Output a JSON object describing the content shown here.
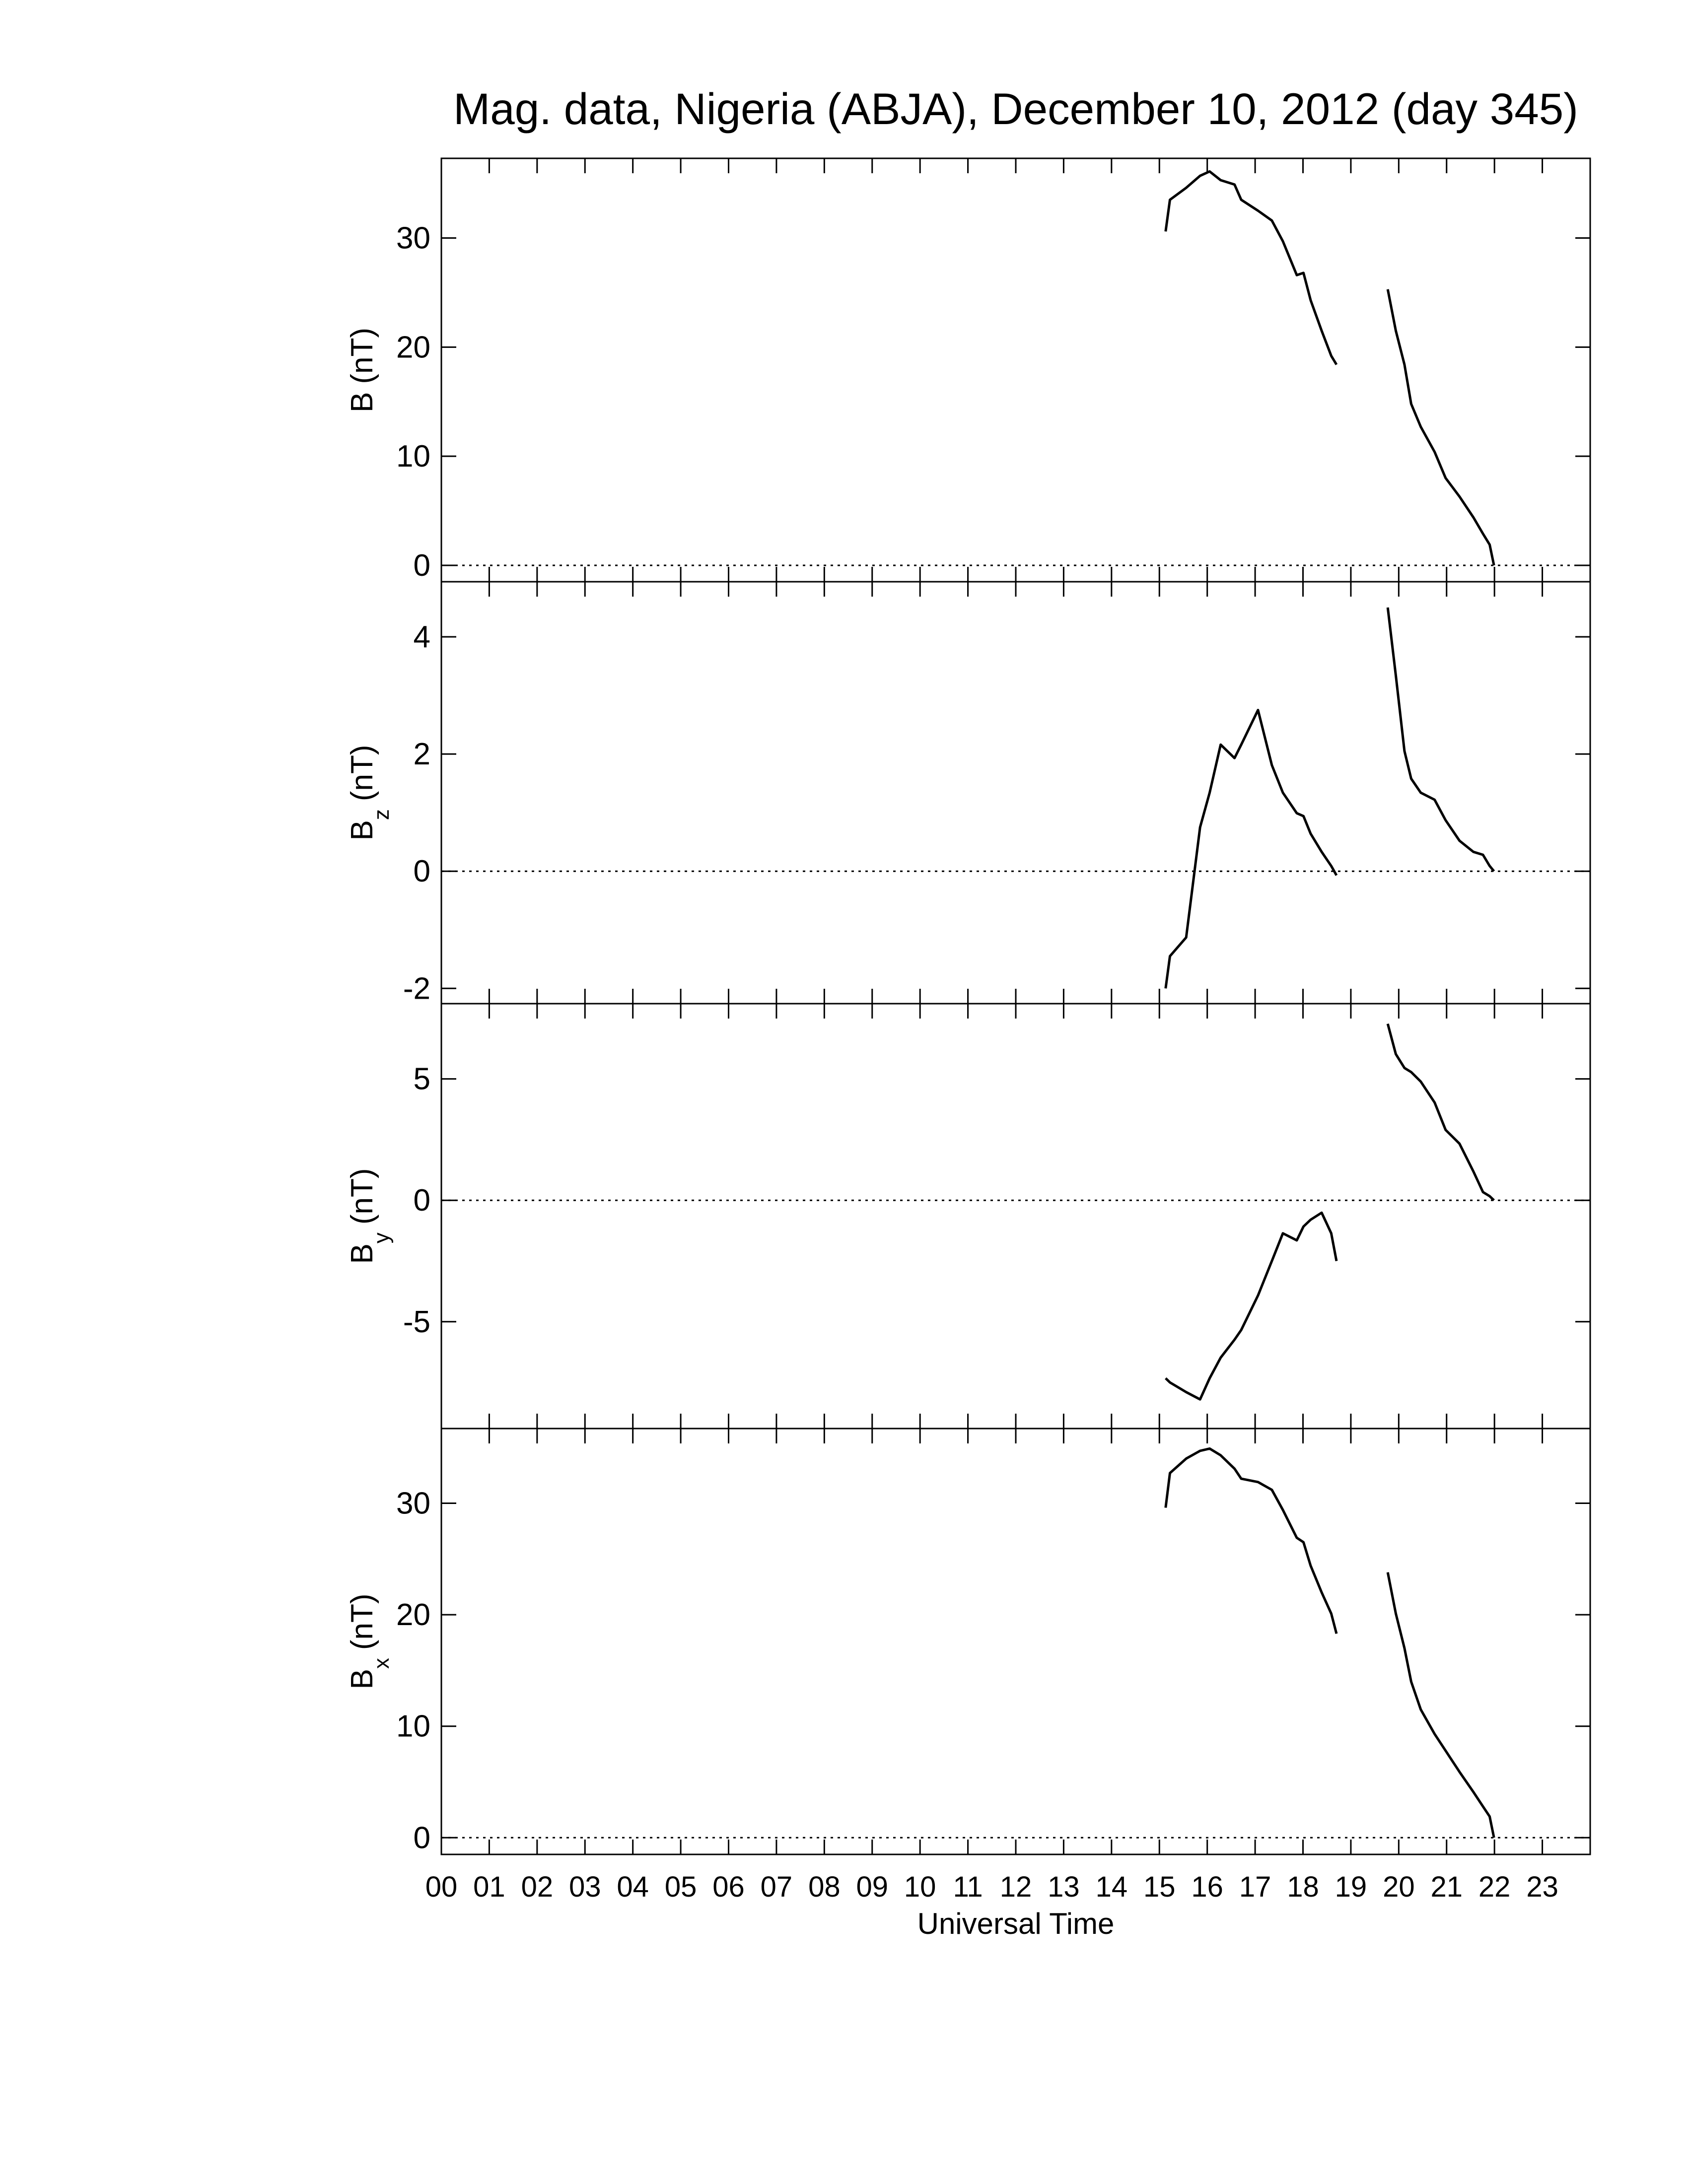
{
  "chart_data": [
    {
      "type": "line",
      "title": "Mag. data, Nigeria (ABJA), December 10, 2012 (day 345)",
      "ylabel": "B",
      "ylabel_unit": "(nT)",
      "color": "#000000",
      "zero_line": true,
      "xlim": [
        0,
        24
      ],
      "ylim": [
        -1.5,
        37.3
      ],
      "yticks": [
        0,
        10,
        20,
        30
      ],
      "x": [
        15.13,
        15.22,
        15.56,
        15.85,
        16.05,
        16.28,
        16.57,
        16.71,
        17.06,
        17.35,
        17.58,
        17.87,
        18.01,
        18.16,
        18.39,
        18.59,
        18.7,
        19.2,
        19.77,
        19.94,
        20.12,
        20.26,
        20.46,
        20.75,
        20.98,
        21.27,
        21.56,
        21.76,
        21.9,
        21.99
      ],
      "values": [
        30.6,
        33.5,
        34.6,
        35.7,
        36.1,
        35.3,
        34.9,
        33.5,
        32.5,
        31.6,
        29.7,
        26.6,
        26.8,
        24.3,
        21.5,
        19.2,
        18.4,
        null,
        25.3,
        21.5,
        18.4,
        14.8,
        12.7,
        10.4,
        8.0,
        6.3,
        4.4,
        2.9,
        1.9,
        0
      ]
    },
    {
      "type": "line",
      "ylabel": "B",
      "ylabel_sub": "z",
      "ylabel_unit": "(nT)",
      "color": "#000000",
      "zero_line": true,
      "xlim": [
        0,
        24
      ],
      "ylim": [
        -2.26,
        4.94
      ],
      "yticks": [
        -2,
        0,
        2,
        4
      ],
      "x": [
        15.13,
        15.22,
        15.56,
        15.85,
        16.05,
        16.28,
        16.57,
        16.71,
        17.06,
        17.35,
        17.58,
        17.87,
        18.01,
        18.16,
        18.39,
        18.59,
        18.7,
        19.2,
        19.77,
        19.94,
        20.12,
        20.26,
        20.46,
        20.75,
        20.98,
        21.27,
        21.56,
        21.76,
        21.9,
        21.99
      ],
      "values": [
        -2.0,
        -1.45,
        -1.13,
        0.75,
        1.34,
        2.16,
        1.93,
        2.16,
        2.75,
        1.81,
        1.34,
        0.99,
        0.94,
        0.64,
        0.33,
        0.09,
        -0.07,
        null,
        4.5,
        3.34,
        2.05,
        1.58,
        1.34,
        1.22,
        0.87,
        0.52,
        0.33,
        0.28,
        0.09,
        0.0
      ]
    },
    {
      "type": "line",
      "ylabel": "B",
      "ylabel_sub": "y",
      "ylabel_unit": "(nT)",
      "color": "#000000",
      "zero_line": true,
      "xlim": [
        0,
        24
      ],
      "ylim": [
        -9.4,
        8.1
      ],
      "yticks": [
        -5,
        0,
        5
      ],
      "x": [
        15.13,
        15.22,
        15.56,
        15.85,
        16.05,
        16.28,
        16.57,
        16.71,
        17.06,
        17.35,
        17.58,
        17.87,
        18.01,
        18.16,
        18.39,
        18.59,
        18.7,
        19.2,
        19.77,
        19.94,
        20.12,
        20.26,
        20.46,
        20.75,
        20.98,
        21.27,
        21.56,
        21.76,
        21.9,
        21.99
      ],
      "values": [
        -7.33,
        -7.5,
        -7.9,
        -8.2,
        -7.33,
        -6.48,
        -5.74,
        -5.34,
        -3.92,
        -2.5,
        -1.36,
        -1.65,
        -1.08,
        -0.8,
        -0.51,
        -1.36,
        -2.5,
        null,
        7.27,
        6.02,
        5.45,
        5.28,
        4.89,
        4.03,
        2.9,
        2.33,
        1.19,
        0.34,
        0.17,
        0
      ]
    },
    {
      "type": "line",
      "ylabel": "B",
      "ylabel_sub": "x",
      "ylabel_unit": "(nT)",
      "color": "#000000",
      "zero_line": true,
      "xlabel": "Universal Time",
      "xlim": [
        0,
        24
      ],
      "ylim": [
        -1.5,
        36.7
      ],
      "yticks": [
        0,
        10,
        20,
        30
      ],
      "xticks": [
        {
          "value": 0,
          "label": "00"
        },
        {
          "value": 1,
          "label": "01"
        },
        {
          "value": 2,
          "label": "02"
        },
        {
          "value": 3,
          "label": "03"
        },
        {
          "value": 4,
          "label": "04"
        },
        {
          "value": 5,
          "label": "05"
        },
        {
          "value": 6,
          "label": "06"
        },
        {
          "value": 7,
          "label": "07"
        },
        {
          "value": 8,
          "label": "08"
        },
        {
          "value": 9,
          "label": "09"
        },
        10,
        11,
        12,
        13,
        14,
        15,
        16,
        17,
        18,
        19,
        20,
        21,
        22,
        23
      ],
      "x": [
        15.13,
        15.22,
        15.56,
        15.85,
        16.05,
        16.28,
        16.57,
        16.71,
        17.06,
        17.35,
        17.58,
        17.87,
        18.01,
        18.16,
        18.39,
        18.59,
        18.7,
        19.2,
        19.77,
        19.94,
        20.12,
        20.26,
        20.46,
        20.75,
        20.98,
        21.27,
        21.56,
        21.76,
        21.9,
        21.99
      ],
      "values": [
        29.6,
        32.7,
        34.0,
        34.7,
        34.9,
        34.3,
        33.1,
        32.2,
        31.9,
        31.2,
        29.4,
        26.9,
        26.5,
        24.4,
        22.0,
        20.1,
        18.3,
        null,
        23.8,
        20.1,
        17.0,
        14.0,
        11.5,
        9.3,
        7.8,
        5.9,
        4.1,
        2.8,
        1.9,
        0
      ]
    }
  ]
}
